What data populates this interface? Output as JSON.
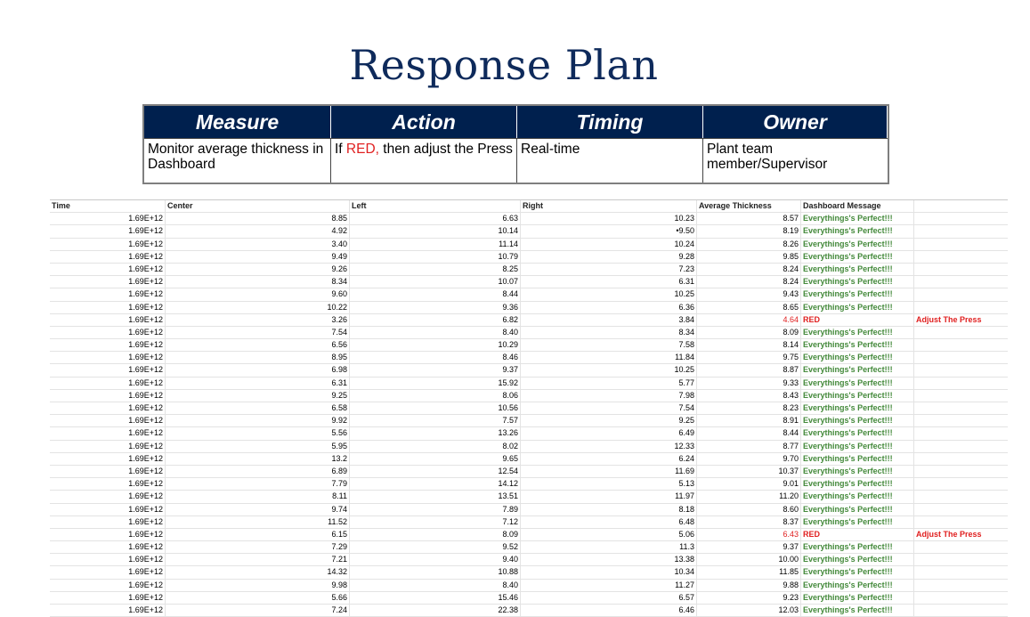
{
  "title": "Response Plan",
  "plan": {
    "headers": [
      "Measure",
      "Action",
      "Timing",
      "Owner"
    ],
    "measure": "Monitor average thickness in Dashboard",
    "action_prefix": "If ",
    "action_red": "RED,",
    "action_suffix": " then adjust the Press",
    "timing": "Real-time",
    "owner": "Plant team member/Supervisor"
  },
  "sheet": {
    "columns": [
      "Time",
      "Center",
      "Left",
      "Right",
      "Average Thickness",
      "Dashboard Message",
      ""
    ],
    "rows": [
      [
        "1.69E+12",
        "8.85",
        "6.63",
        "10.23",
        "8.57",
        "Everythings's Perfect!!!",
        ""
      ],
      [
        "1.69E+12",
        "4.92",
        "10.14",
        "9.50",
        "8.19",
        "Everythings's Perfect!!!",
        ""
      ],
      [
        "1.69E+12",
        "3.40",
        "11.14",
        "10.24",
        "8.26",
        "Everythings's Perfect!!!",
        ""
      ],
      [
        "1.69E+12",
        "9.49",
        "10.79",
        "9.28",
        "9.85",
        "Everythings's Perfect!!!",
        ""
      ],
      [
        "1.69E+12",
        "9.26",
        "8.25",
        "7.23",
        "8.24",
        "Everythings's Perfect!!!",
        ""
      ],
      [
        "1.69E+12",
        "8.34",
        "10.07",
        "6.31",
        "8.24",
        "Everythings's Perfect!!!",
        ""
      ],
      [
        "1.69E+12",
        "9.60",
        "8.44",
        "10.25",
        "9.43",
        "Everythings's Perfect!!!",
        ""
      ],
      [
        "1.69E+12",
        "10.22",
        "9.36",
        "6.36",
        "8.65",
        "Everythings's Perfect!!!",
        ""
      ],
      [
        "1.69E+12",
        "3.26",
        "6.82",
        "3.84",
        "4.64",
        "RED",
        "Adjust The Press"
      ],
      [
        "1.69E+12",
        "7.54",
        "8.40",
        "8.34",
        "8.09",
        "Everythings's Perfect!!!",
        ""
      ],
      [
        "1.69E+12",
        "6.56",
        "10.29",
        "7.58",
        "8.14",
        "Everythings's Perfect!!!",
        ""
      ],
      [
        "1.69E+12",
        "8.95",
        "8.46",
        "11.84",
        "9.75",
        "Everythings's Perfect!!!",
        ""
      ],
      [
        "1.69E+12",
        "6.98",
        "9.37",
        "10.25",
        "8.87",
        "Everythings's Perfect!!!",
        ""
      ],
      [
        "1.69E+12",
        "6.31",
        "15.92",
        "5.77",
        "9.33",
        "Everythings's Perfect!!!",
        ""
      ],
      [
        "1.69E+12",
        "9.25",
        "8.06",
        "7.98",
        "8.43",
        "Everythings's Perfect!!!",
        ""
      ],
      [
        "1.69E+12",
        "6.58",
        "10.56",
        "7.54",
        "8.23",
        "Everythings's Perfect!!!",
        ""
      ],
      [
        "1.69E+12",
        "9.92",
        "7.57",
        "9.25",
        "8.91",
        "Everythings's Perfect!!!",
        ""
      ],
      [
        "1.69E+12",
        "5.56",
        "13.26",
        "6.49",
        "8.44",
        "Everythings's Perfect!!!",
        ""
      ],
      [
        "1.69E+12",
        "5.95",
        "8.02",
        "12.33",
        "8.77",
        "Everythings's Perfect!!!",
        ""
      ],
      [
        "1.69E+12",
        "13.2",
        "9.65",
        "6.24",
        "9.70",
        "Everythings's Perfect!!!",
        ""
      ],
      [
        "1.69E+12",
        "6.89",
        "12.54",
        "11.69",
        "10.37",
        "Everythings's Perfect!!!",
        ""
      ],
      [
        "1.69E+12",
        "7.79",
        "14.12",
        "5.13",
        "9.01",
        "Everythings's Perfect!!!",
        ""
      ],
      [
        "1.69E+12",
        "8.11",
        "13.51",
        "11.97",
        "11.20",
        "Everythings's Perfect!!!",
        ""
      ],
      [
        "1.69E+12",
        "9.74",
        "7.89",
        "8.18",
        "8.60",
        "Everythings's Perfect!!!",
        ""
      ],
      [
        "1.69E+12",
        "11.52",
        "7.12",
        "6.48",
        "8.37",
        "Everythings's Perfect!!!",
        ""
      ],
      [
        "1.69E+12",
        "6.15",
        "8.09",
        "5.06",
        "6.43",
        "RED",
        "Adjust The Press"
      ],
      [
        "1.69E+12",
        "7.29",
        "9.52",
        "11.3",
        "9.37",
        "Everythings's Perfect!!!",
        ""
      ],
      [
        "1.69E+12",
        "7.21",
        "9.40",
        "13.38",
        "10.00",
        "Everythings's Perfect!!!",
        ""
      ],
      [
        "1.69E+12",
        "14.32",
        "10.88",
        "10.34",
        "11.85",
        "Everythings's Perfect!!!",
        ""
      ],
      [
        "1.69E+12",
        "9.98",
        "8.40",
        "11.27",
        "9.88",
        "Everythings's Perfect!!!",
        ""
      ],
      [
        "1.69E+12",
        "5.66",
        "15.46",
        "6.57",
        "9.23",
        "Everythings's Perfect!!!",
        ""
      ],
      [
        "1.69E+12",
        "7.24",
        "22.38",
        "6.46",
        "12.03",
        "Everythings's Perfect!!!",
        ""
      ]
    ]
  },
  "colors": {
    "header_bg": "#00204e",
    "title": "#0e2a5b",
    "ok": "#43893a",
    "alert": "#e02020"
  }
}
